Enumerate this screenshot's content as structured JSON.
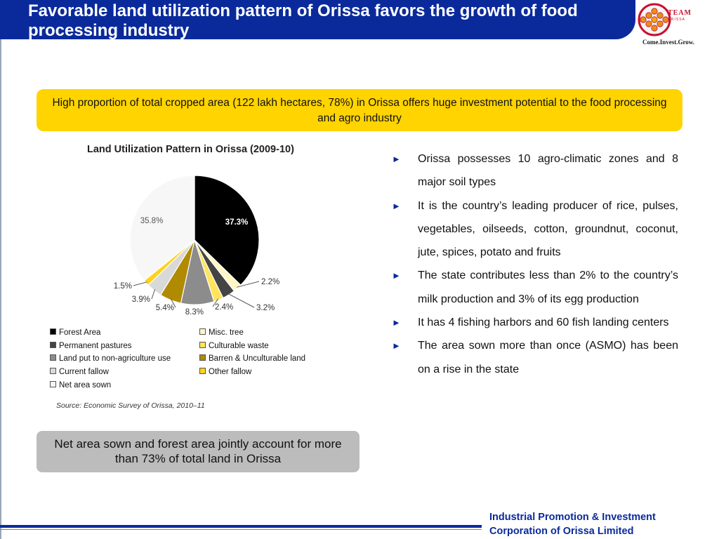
{
  "header": {
    "title": "Favorable land utilization pattern of Orissa favors the growth of food processing industry",
    "logo": {
      "name": "team-orissa-logo",
      "team": "TEAM",
      "sub": "ORISSA",
      "tagline": "Come.Invest.Grow."
    }
  },
  "highlight_text": "High proportion of total cropped area (122 lakh hectares, 78%) in Orissa offers huge investment potential to the food processing and agro industry",
  "chart_data": {
    "type": "pie",
    "title": "Land Utilization Pattern in Orissa (2009-10)",
    "slices": [
      {
        "name": "Forest Area",
        "value": 37.3,
        "label": "37.3%",
        "color": "#000000"
      },
      {
        "name": "Misc. tree",
        "value": 2.2,
        "label": "2.2%",
        "color": "#fff6c8"
      },
      {
        "name": "Permanent pastures",
        "value": 3.2,
        "label": "3.2%",
        "color": "#444444"
      },
      {
        "name": "Culturable waste",
        "value": 2.4,
        "label": "2.4%",
        "color": "#ffe45c"
      },
      {
        "name": "Land put to non-agriculture use",
        "value": 8.3,
        "label": "8.3%",
        "color": "#8c8c8c"
      },
      {
        "name": "Barren & Unculturable land",
        "value": 5.4,
        "label": "5.4%",
        "color": "#b08a00"
      },
      {
        "name": "Current fallow",
        "value": 3.9,
        "label": "3.9%",
        "color": "#d9d9d9"
      },
      {
        "name": "Other fallow",
        "value": 1.5,
        "label": "1.5%",
        "color": "#ffd21a"
      },
      {
        "name": "Net area sown",
        "value": 35.8,
        "label": "35.8%",
        "color": "#f7f7f7"
      }
    ],
    "legend": [
      {
        "label": "Forest Area",
        "color": "#000000"
      },
      {
        "label": "Misc. tree",
        "color": "#fff6c8"
      },
      {
        "label": "Permanent pastures",
        "color": "#444444"
      },
      {
        "label": "Culturable waste",
        "color": "#ffe45c"
      },
      {
        "label": "Land put to non-agriculture use",
        "color": "#8c8c8c"
      },
      {
        "label": "Barren & Unculturable land",
        "color": "#b08a00"
      },
      {
        "label": "Current fallow",
        "color": "#d9d9d9"
      },
      {
        "label": "Other fallow",
        "color": "#ffd21a"
      },
      {
        "label": "Net area sown",
        "color": "#f7f7f7"
      }
    ],
    "legend_placement": "bottom"
  },
  "source": "Source: Economic Survey of Orissa, 2010–11",
  "callout": "Net area sown and forest area jointly account for more than 73% of total land in Orissa",
  "bullets": [
    "Orissa possesses 10 agro-climatic zones and 8 major soil types",
    "It is the country’s leading producer of rice, pulses, vegetables, oilseeds, cotton, groundnut, coconut, jute, spices, potato and fruits",
    "The state contributes less than 2% to the country’s milk production and  3% of its egg production",
    "It has 4 fishing harbors and 60 fish landing centers",
    "The area sown more  than once (ASMO) has been on a rise in the state"
  ],
  "bullet_marker": "►",
  "footer": {
    "line1": "Industrial Promotion & Investment",
    "line2": "Corporation of Orissa Limited"
  }
}
